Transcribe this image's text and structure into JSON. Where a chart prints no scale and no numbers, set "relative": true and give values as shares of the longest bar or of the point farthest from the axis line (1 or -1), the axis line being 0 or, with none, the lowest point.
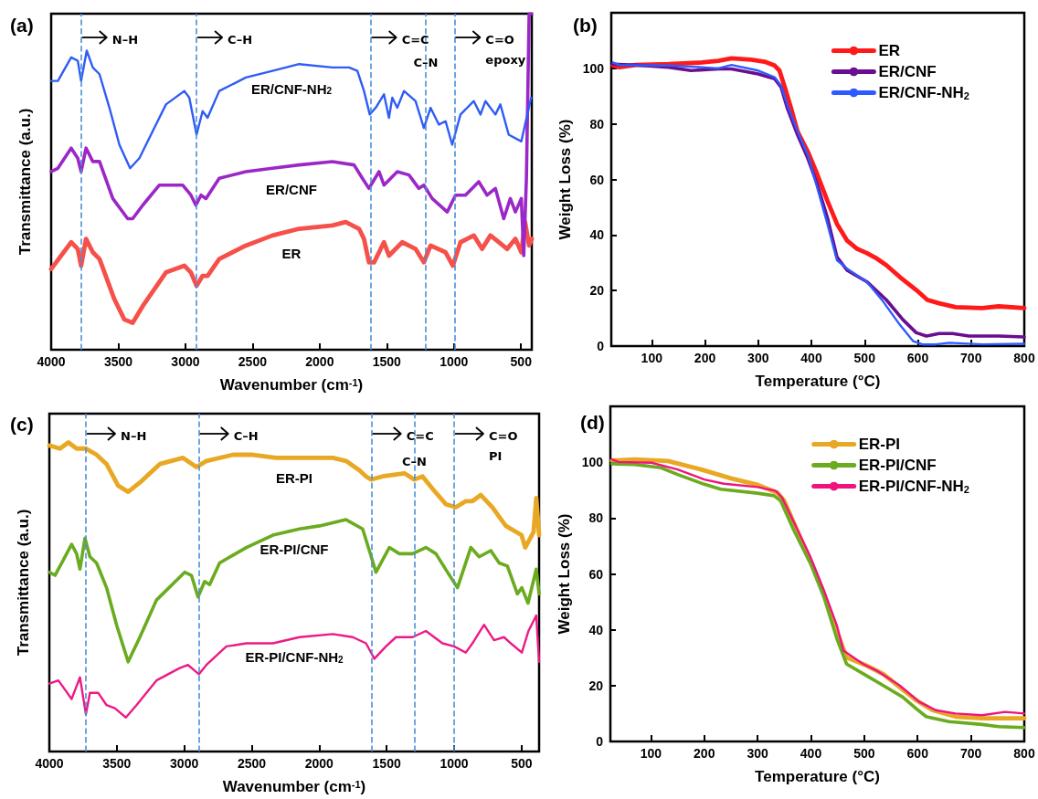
{
  "chart_data": [
    {
      "type": "line",
      "title": "(a)",
      "xlabel": "Wavenumber (cm$^{-1}$)",
      "ylabel": "Transmittance (a.u.)",
      "relative": true,
      "xlim": [
        4000,
        420
      ],
      "xticks": [
        4000,
        3500,
        3000,
        2500,
        2000,
        1500,
        1000,
        500
      ],
      "legend": false,
      "ref_lines": [
        {
          "axis": "x",
          "value": 3777,
          "label": "N–H",
          "color": "#4a90d9",
          "line_style": "dashed"
        },
        {
          "axis": "x",
          "value": 2917,
          "label": "C–H",
          "color": "#4a90d9",
          "line_style": "dashed"
        },
        {
          "axis": "x",
          "value": 1620,
          "label": "C=C",
          "color": "#4a90d9",
          "line_style": "dashed"
        },
        {
          "axis": "x",
          "value": 1210,
          "label": "C–N",
          "color": "#4a90d9",
          "line_style": "dashed"
        },
        {
          "axis": "x",
          "value": 996,
          "label": "C=O epoxy",
          "color": "#4a90d9",
          "line_style": "dashed"
        }
      ],
      "series": [
        {
          "name": "ER",
          "color": "#f5504a",
          "x": [
            4000,
            3851,
            3802,
            3777,
            3740,
            3690,
            3640,
            3529,
            3455,
            3393,
            3318,
            3145,
            3008,
            2959,
            2917,
            2872,
            2835,
            2748,
            2550,
            2352,
            2153,
            1905,
            1806,
            1707,
            1670,
            1633,
            1595,
            1521,
            1484,
            1385,
            1286,
            1224,
            1174,
            1062,
            1008,
            951,
            852,
            790,
            728,
            666,
            604,
            542,
            498,
            470,
            440,
            420
          ],
          "values": [
            0.24,
            0.32,
            0.3,
            0.25,
            0.33,
            0.29,
            0.27,
            0.15,
            0.09,
            0.08,
            0.13,
            0.23,
            0.25,
            0.23,
            0.19,
            0.22,
            0.22,
            0.27,
            0.31,
            0.34,
            0.36,
            0.37,
            0.38,
            0.36,
            0.33,
            0.26,
            0.26,
            0.32,
            0.28,
            0.32,
            0.3,
            0.26,
            0.31,
            0.29,
            0.25,
            0.32,
            0.34,
            0.3,
            0.34,
            0.32,
            0.3,
            0.33,
            0.29,
            0.38,
            0.31,
            0.33
          ]
        },
        {
          "name": "ER/CNF",
          "color": "#9c27c7",
          "x": [
            4000,
            3950,
            3851,
            3802,
            3777,
            3740,
            3690,
            3640,
            3541,
            3430,
            3393,
            3318,
            3194,
            3021,
            2959,
            2922,
            2884,
            2847,
            2748,
            2550,
            2352,
            2153,
            1905,
            1744,
            1682,
            1633,
            1558,
            1521,
            1422,
            1335,
            1261,
            1224,
            1162,
            1050,
            988,
            914,
            815,
            753,
            691,
            629,
            580,
            542,
            498,
            480,
            460,
            440,
            420
          ],
          "values": [
            0.53,
            0.54,
            0.6,
            0.57,
            0.53,
            0.6,
            0.56,
            0.56,
            0.45,
            0.39,
            0.39,
            0.43,
            0.49,
            0.49,
            0.46,
            0.43,
            0.46,
            0.45,
            0.51,
            0.53,
            0.54,
            0.55,
            0.56,
            0.55,
            0.51,
            0.48,
            0.53,
            0.49,
            0.53,
            0.52,
            0.48,
            0.49,
            0.45,
            0.41,
            0.46,
            0.46,
            0.5,
            0.46,
            0.48,
            0.39,
            0.45,
            0.41,
            0.45,
            0.28,
            0.51,
            1.0,
            1.0
          ]
        },
        {
          "name": "ER/CNF-NH$_{2}$",
          "color": "#2f5cf5",
          "x": [
            4000,
            3950,
            3851,
            3802,
            3777,
            3735,
            3690,
            3640,
            3566,
            3492,
            3412,
            3343,
            3244,
            3145,
            3008,
            2971,
            2917,
            2872,
            2835,
            2748,
            2550,
            2352,
            2153,
            1905,
            1781,
            1719,
            1670,
            1627,
            1583,
            1521,
            1484,
            1459,
            1422,
            1372,
            1286,
            1224,
            1174,
            1112,
            1062,
            1013,
            951,
            852,
            802,
            765,
            691,
            654,
            592,
            498,
            425
          ],
          "values": [
            0.8,
            0.8,
            0.87,
            0.86,
            0.8,
            0.89,
            0.84,
            0.82,
            0.72,
            0.61,
            0.54,
            0.57,
            0.65,
            0.73,
            0.77,
            0.75,
            0.64,
            0.71,
            0.69,
            0.77,
            0.81,
            0.83,
            0.85,
            0.84,
            0.84,
            0.83,
            0.77,
            0.7,
            0.72,
            0.76,
            0.69,
            0.75,
            0.72,
            0.77,
            0.74,
            0.66,
            0.72,
            0.67,
            0.68,
            0.61,
            0.7,
            0.74,
            0.7,
            0.74,
            0.7,
            0.73,
            0.64,
            0.62,
            0.75
          ]
        }
      ]
    },
    {
      "type": "line",
      "title": "(b)",
      "xlabel": "Temperature (°C)",
      "ylabel": "Weight Loss (%)",
      "xlim": [
        24,
        800
      ],
      "xticks": [
        100,
        200,
        300,
        400,
        500,
        600,
        700,
        800
      ],
      "ylim": [
        0,
        120
      ],
      "yticks": [
        0,
        20,
        40,
        60,
        80,
        100
      ],
      "legend": "top right",
      "series": [
        {
          "name": "ER",
          "color": "#ff1a1a",
          "x": [
            27,
            39,
            70,
            132,
            194,
            225,
            250,
            287,
            312,
            331,
            340,
            349,
            362,
            374,
            393,
            411,
            430,
            448,
            467,
            486,
            504,
            523,
            541,
            566,
            597,
            618,
            640,
            671,
            721,
            752,
            800
          ],
          "values": [
            101,
            100.4,
            101.2,
            101.5,
            102.1,
            102.7,
            103.6,
            103.1,
            102.4,
            101,
            99.2,
            93.8,
            85.5,
            77.2,
            70.1,
            61.8,
            52.3,
            44,
            38,
            35,
            33.5,
            31.5,
            29.1,
            24.9,
            20.2,
            16.6,
            15.4,
            14,
            13.7,
            14.3,
            13.7
          ]
        },
        {
          "name": "ER/CNF",
          "color": "#6a0d91",
          "x": [
            27,
            70,
            132,
            174,
            225,
            250,
            300,
            331,
            343,
            355,
            374,
            393,
            411,
            430,
            448,
            467,
            504,
            541,
            572,
            597,
            616,
            640,
            665,
            696,
            752,
            800
          ],
          "values": [
            101.5,
            101.2,
            100.4,
            99.2,
            99.8,
            99.8,
            98,
            96.2,
            93.2,
            85.5,
            76,
            67.7,
            58.2,
            46.3,
            32.1,
            27.3,
            23.2,
            16.6,
            9.5,
            4.8,
            3.6,
            4.5,
            4.5,
            3.6,
            3.6,
            3.3
          ]
        },
        {
          "name": "ER/CNF-NH$_{2}$",
          "color": "#2e5bff",
          "x": [
            27,
            39,
            132,
            194,
            225,
            250,
            300,
            331,
            343,
            355,
            374,
            393,
            411,
            430,
            448,
            467,
            504,
            535,
            566,
            591,
            609,
            634,
            659,
            721,
            800
          ],
          "values": [
            102.1,
            101.2,
            101,
            100.4,
            100,
            101.2,
            99.2,
            96.8,
            93.8,
            86.7,
            77.2,
            68.9,
            57,
            44,
            30.9,
            27.9,
            23.2,
            16,
            7.7,
            1.8,
            0.6,
            0.6,
            1.2,
            0.6,
            0.8
          ]
        }
      ]
    },
    {
      "type": "line",
      "title": "(c)",
      "xlabel": "Wavenumber (cm$^{-1}$)",
      "ylabel": "Transmittance (a.u.)",
      "relative": true,
      "xlim": [
        4000,
        370
      ],
      "xticks": [
        4000,
        3500,
        3000,
        2500,
        2000,
        1500,
        1000,
        500
      ],
      "legend": false,
      "ref_lines": [
        {
          "axis": "x",
          "value": 3729,
          "label": "N–H",
          "color": "#4a90d9",
          "line_style": "dashed"
        },
        {
          "axis": "x",
          "value": 2891,
          "label": "C–H",
          "color": "#4a90d9",
          "line_style": "dashed"
        },
        {
          "axis": "x",
          "value": 1611,
          "label": "C=C",
          "color": "#4a90d9",
          "line_style": "dashed"
        },
        {
          "axis": "x",
          "value": 1295,
          "label": "C–N",
          "color": "#4a90d9",
          "line_style": "dashed"
        },
        {
          "axis": "x",
          "value": 1000,
          "label": "C=O PI",
          "color": "#4a90d9",
          "line_style": "dashed"
        }
      ],
      "series": [
        {
          "name": "ER-PI",
          "color": "#e8a823",
          "x": [
            4000,
            3921,
            3859,
            3798,
            3729,
            3650,
            3576,
            3490,
            3416,
            3329,
            3181,
            3009,
            2910,
            2836,
            2639,
            2491,
            2319,
            2146,
            1899,
            1801,
            1702,
            1653,
            1615,
            1530,
            1369,
            1295,
            1234,
            1160,
            1061,
            987,
            913,
            864,
            802,
            716,
            617,
            500,
            473,
            411,
            391,
            370
          ],
          "values": [
            0.99,
            0.98,
            1,
            0.98,
            0.98,
            0.96,
            0.93,
            0.86,
            0.84,
            0.87,
            0.93,
            0.95,
            0.92,
            0.94,
            0.96,
            0.96,
            0.95,
            0.95,
            0.95,
            0.94,
            0.91,
            0.89,
            0.88,
            0.89,
            0.9,
            0.88,
            0.89,
            0.85,
            0.8,
            0.79,
            0.81,
            0.81,
            0.83,
            0.79,
            0.73,
            0.7,
            0.66,
            0.71,
            0.82,
            0.7
          ]
        },
        {
          "name": "ER-PI/CNF",
          "color": "#6aab1f",
          "x": [
            4000,
            3958,
            3896,
            3835,
            3798,
            3773,
            3736,
            3699,
            3650,
            3576,
            3502,
            3416,
            3329,
            3206,
            2997,
            2947,
            2898,
            2849,
            2812,
            2738,
            2540,
            2343,
            2146,
            1998,
            1801,
            1678,
            1628,
            1579,
            1480,
            1406,
            1308,
            1209,
            1135,
            1049,
            975,
            876,
            814,
            728,
            666,
            605,
            531,
            498,
            452,
            391,
            370
          ],
          "values": [
            0.58,
            0.57,
            0.62,
            0.67,
            0.64,
            0.59,
            0.69,
            0.63,
            0.61,
            0.53,
            0.41,
            0.29,
            0.37,
            0.49,
            0.58,
            0.57,
            0.5,
            0.55,
            0.54,
            0.61,
            0.66,
            0.7,
            0.72,
            0.73,
            0.75,
            0.72,
            0.65,
            0.58,
            0.66,
            0.64,
            0.64,
            0.66,
            0.64,
            0.58,
            0.53,
            0.66,
            0.63,
            0.65,
            0.61,
            0.6,
            0.51,
            0.53,
            0.48,
            0.59,
            0.51
          ]
        },
        {
          "name": "ER-PI/CNF-NH$_{2}$",
          "color": "#ec1a86",
          "x": [
            4000,
            3933,
            3835,
            3773,
            3729,
            3699,
            3638,
            3576,
            3514,
            3433,
            3354,
            3206,
            3034,
            2972,
            2891,
            2836,
            2688,
            2540,
            2343,
            2146,
            1899,
            1751,
            1653,
            1591,
            1505,
            1431,
            1308,
            1209,
            1086,
            1000,
            913,
            864,
            778,
            704,
            630,
            580,
            498,
            449,
            391,
            370
          ],
          "values": [
            0.22,
            0.23,
            0.17,
            0.24,
            0.12,
            0.19,
            0.19,
            0.15,
            0.14,
            0.11,
            0.15,
            0.23,
            0.27,
            0.28,
            0.25,
            0.28,
            0.34,
            0.35,
            0.35,
            0.37,
            0.38,
            0.37,
            0.35,
            0.3,
            0.34,
            0.37,
            0.37,
            0.39,
            0.35,
            0.34,
            0.32,
            0.35,
            0.41,
            0.36,
            0.37,
            0.35,
            0.32,
            0.39,
            0.44,
            0.29
          ]
        }
      ]
    },
    {
      "type": "line",
      "title": "(d)",
      "xlabel": "Temperature (°C)",
      "ylabel": "Weight Loss (%)",
      "xlim": [
        24,
        800
      ],
      "xticks": [
        100,
        200,
        300,
        400,
        500,
        600,
        700,
        800
      ],
      "ylim": [
        0,
        120
      ],
      "yticks": [
        0,
        20,
        40,
        60,
        80,
        100
      ],
      "legend": "top right",
      "series": [
        {
          "name": "ER-PI",
          "color": "#e8a823",
          "x": [
            27,
            70,
            132,
            194,
            250,
            300,
            337,
            350,
            374,
            399,
            424,
            449,
            467,
            504,
            535,
            566,
            597,
            628,
            671,
            721,
            800
          ],
          "values": [
            100.6,
            101,
            100.4,
            97.4,
            94.2,
            91.9,
            89.1,
            86.2,
            75.6,
            64.9,
            53.1,
            39,
            30.1,
            27.2,
            24.2,
            19.5,
            14.8,
            11.2,
            8.9,
            8.3,
            8.3
          ]
        },
        {
          "name": "ER-PI/CNF",
          "color": "#6aab1f",
          "x": [
            27,
            70,
            119,
            150,
            200,
            231,
            300,
            331,
            343,
            368,
            399,
            424,
            449,
            467,
            504,
            535,
            572,
            597,
            616,
            659,
            721,
            752,
            800
          ],
          "values": [
            99.4,
            99.2,
            98,
            95.6,
            92.1,
            90.3,
            88.9,
            88,
            86.2,
            75.6,
            63.8,
            51.9,
            36.6,
            27.7,
            23.6,
            20.1,
            15.9,
            11.8,
            8.9,
            7.1,
            6.1,
            5.3,
            5
          ]
        },
        {
          "name": "ER-PI/CNF-NH$_{2}$",
          "color": "#f0137f",
          "x": [
            27,
            39,
            101,
            150,
            200,
            237,
            300,
            334,
            346,
            374,
            399,
            424,
            449,
            461,
            498,
            523,
            566,
            603,
            634,
            671,
            721,
            764,
            800
          ],
          "values": [
            101,
            100.1,
            99.8,
            97.4,
            93.8,
            92.3,
            91.1,
            89.7,
            87.3,
            76.1,
            66.1,
            54.3,
            41.3,
            32.5,
            27.7,
            25.4,
            20.1,
            14.2,
            11.2,
            10,
            9.4,
            10.6,
            10
          ]
        }
      ]
    }
  ]
}
